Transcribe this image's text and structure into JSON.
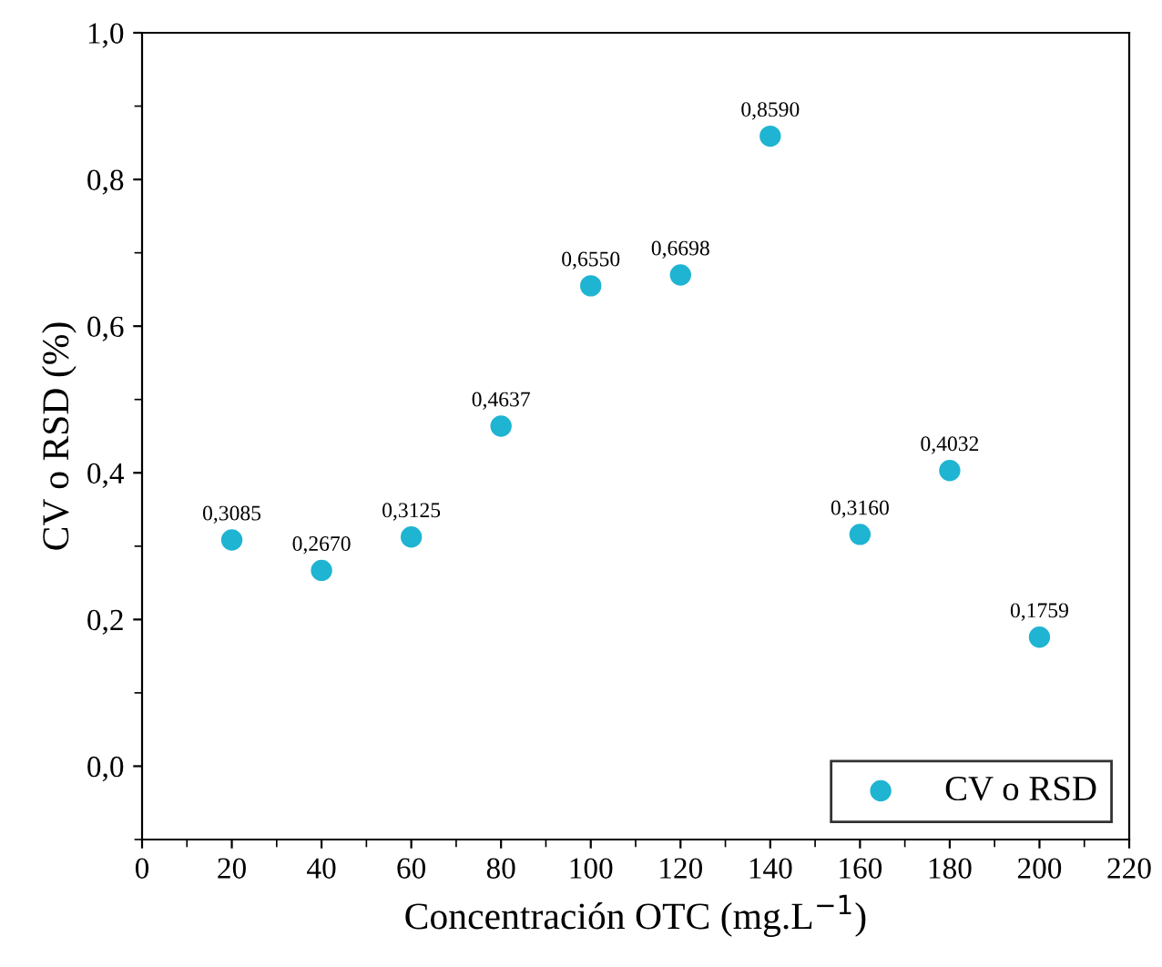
{
  "chart_data": {
    "type": "scatter",
    "xlabel": "Concentración OTC (mg.L$^{−1}$)",
    "ylabel": "CV o RSD (%)",
    "x": [
      20,
      40,
      60,
      80,
      100,
      120,
      140,
      160,
      180,
      200
    ],
    "series": [
      {
        "name": "CV o RSD",
        "color": "#1fb4d2",
        "values": [
          0.3085,
          0.267,
          0.3125,
          0.4637,
          0.655,
          0.6698,
          0.859,
          0.316,
          0.4032,
          0.1759
        ],
        "value_labels": [
          "0,3085",
          "0,2670",
          "0,3125",
          "0,4637",
          "0,6550",
          "0,6698",
          "0,8590",
          "0,3160",
          "0,4032",
          "0,1759"
        ]
      }
    ],
    "xlim": [
      0,
      220
    ],
    "xticks": [
      0,
      20,
      40,
      60,
      80,
      100,
      120,
      140,
      160,
      180,
      200,
      220
    ],
    "ylim": [
      -0.1,
      1.0
    ],
    "yticks": [
      {
        "value": 0.0,
        "label": "0,0"
      },
      {
        "value": 0.2,
        "label": "0,2"
      },
      {
        "value": 0.4,
        "label": "0,4"
      },
      {
        "value": 0.6,
        "label": "0,6"
      },
      {
        "value": 0.8,
        "label": "0,8"
      },
      {
        "value": 1.0,
        "label": "1,0"
      }
    ],
    "marker": "circle",
    "legend": "bottom right",
    "grid": false
  }
}
